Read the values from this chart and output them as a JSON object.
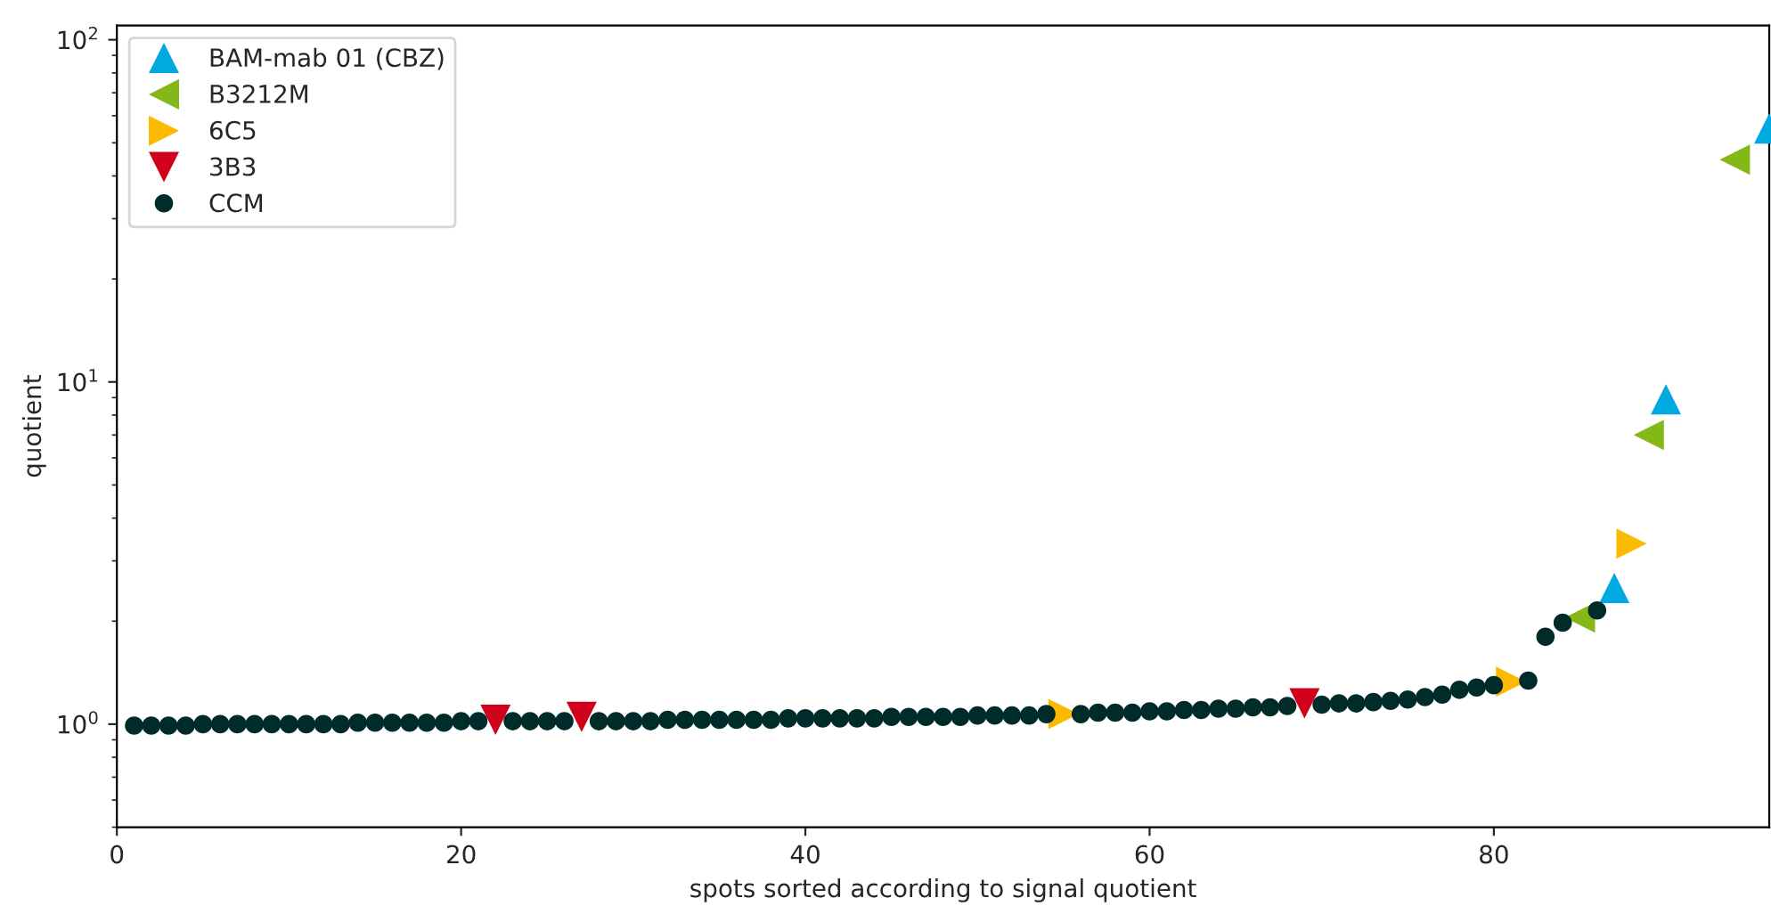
{
  "chart_data": {
    "type": "scatter",
    "xlabel": "spots sorted according to signal quotient",
    "ylabel": "quotient",
    "log": "y",
    "xlim": [
      0,
      96
    ],
    "xticks": [
      0,
      20,
      40,
      60,
      80
    ],
    "ylim": [
      0.5,
      110
    ],
    "yticks": [
      {
        "value": 1,
        "label": "10$^{0}$"
      },
      {
        "value": 10,
        "label": "10$^{1}$"
      },
      {
        "value": 100,
        "label": "10$^{2}$"
      }
    ],
    "grid": false,
    "legend": "top left",
    "series": [
      {
        "name": "BAM-mab 01 (CBZ)",
        "color": "#00a9e0",
        "marker": "triangle-up",
        "x": [
          87,
          90,
          96
        ],
        "values": [
          2.5,
          8.9,
          55
        ]
      },
      {
        "name": "B3212M",
        "color": "#84b818",
        "marker": "triangle-left",
        "x": [
          85,
          89,
          94
        ],
        "values": [
          2.05,
          7.0,
          44.6
        ]
      },
      {
        "name": "6C5",
        "color": "#fbb900",
        "marker": "triangle-right",
        "x": [
          55,
          81,
          88
        ],
        "values": [
          1.07,
          1.33,
          3.37
        ]
      },
      {
        "name": "3B3",
        "color": "#d0021b",
        "marker": "triangle-down",
        "x": [
          22,
          27,
          69
        ],
        "values": [
          1.03,
          1.05,
          1.15
        ]
      },
      {
        "name": "CCM",
        "color": "#002b2b",
        "marker": "circle",
        "x": [
          1,
          2,
          3,
          4,
          5,
          6,
          7,
          8,
          9,
          10,
          11,
          12,
          13,
          14,
          15,
          16,
          17,
          18,
          19,
          20,
          21,
          23,
          24,
          25,
          26,
          28,
          29,
          30,
          31,
          32,
          33,
          34,
          35,
          36,
          37,
          38,
          39,
          40,
          41,
          42,
          43,
          44,
          45,
          46,
          47,
          48,
          49,
          50,
          51,
          52,
          53,
          54,
          56,
          57,
          58,
          59,
          60,
          61,
          62,
          63,
          64,
          65,
          66,
          67,
          68,
          70,
          71,
          72,
          73,
          74,
          75,
          76,
          77,
          78,
          79,
          80,
          82,
          83,
          84,
          86
        ],
        "values": [
          0.99,
          0.99,
          0.99,
          0.99,
          1.0,
          1.0,
          1.0,
          1.0,
          1.0,
          1.0,
          1.0,
          1.0,
          1.0,
          1.01,
          1.01,
          1.01,
          1.01,
          1.01,
          1.01,
          1.02,
          1.02,
          1.02,
          1.02,
          1.02,
          1.02,
          1.02,
          1.02,
          1.02,
          1.02,
          1.03,
          1.03,
          1.03,
          1.03,
          1.03,
          1.03,
          1.03,
          1.04,
          1.04,
          1.04,
          1.04,
          1.04,
          1.04,
          1.05,
          1.05,
          1.05,
          1.05,
          1.05,
          1.06,
          1.06,
          1.06,
          1.06,
          1.07,
          1.07,
          1.08,
          1.08,
          1.08,
          1.09,
          1.09,
          1.1,
          1.1,
          1.11,
          1.11,
          1.12,
          1.12,
          1.13,
          1.14,
          1.15,
          1.15,
          1.16,
          1.17,
          1.18,
          1.2,
          1.22,
          1.26,
          1.28,
          1.3,
          1.34,
          1.8,
          1.98,
          2.15
        ]
      }
    ]
  }
}
